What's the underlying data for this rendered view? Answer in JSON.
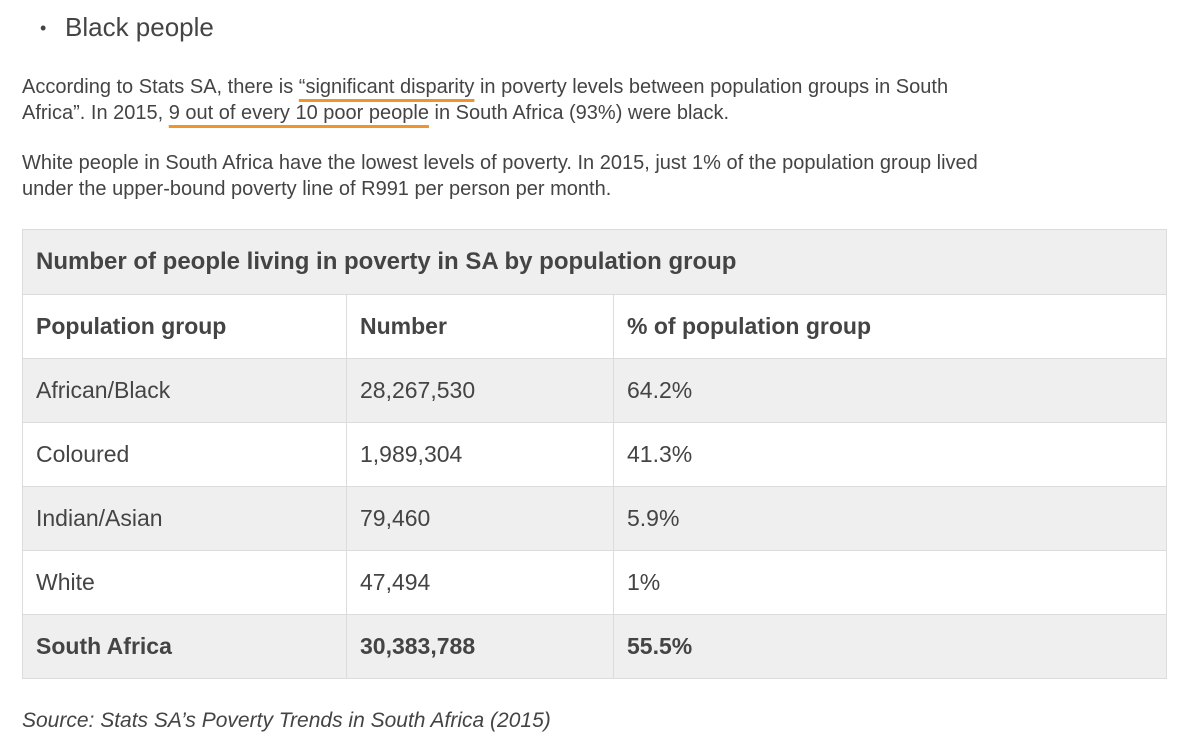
{
  "bullet": "Black people",
  "paragraphs": [
    [
      {
        "text": "According to Stats SA, there is ",
        "underline": false
      },
      {
        "text": "“significant disparity",
        "underline": true
      },
      {
        "text": " in poverty levels between population groups in South Africa”. In 2015, ",
        "underline": false
      },
      {
        "text": "9 out of every 10 poor people",
        "underline": true
      },
      {
        "text": " in South Africa (93%) were black.",
        "underline": false
      }
    ],
    [
      {
        "text": "White people in South Africa have the lowest levels of poverty. In 2015, just 1% of the population group lived under the upper-bound poverty line of R991 per person per month.",
        "underline": false
      }
    ]
  ],
  "table": {
    "title": "Number of people living in poverty in SA by population group",
    "header": [
      "Population group",
      "Number",
      "% of population group"
    ],
    "rows": [
      [
        "African/Black",
        "28,267,530",
        "64.2%"
      ],
      [
        "Coloured",
        "1,989,304",
        "41.3%"
      ],
      [
        "Indian/Asian",
        "79,460",
        "5.9%"
      ],
      [
        "White",
        "47,494",
        "1%"
      ]
    ],
    "total": [
      "South Africa",
      "30,383,788",
      "55.5%"
    ]
  },
  "source": "Source: Stats SA’s Poverty Trends in South Africa (2015)"
}
